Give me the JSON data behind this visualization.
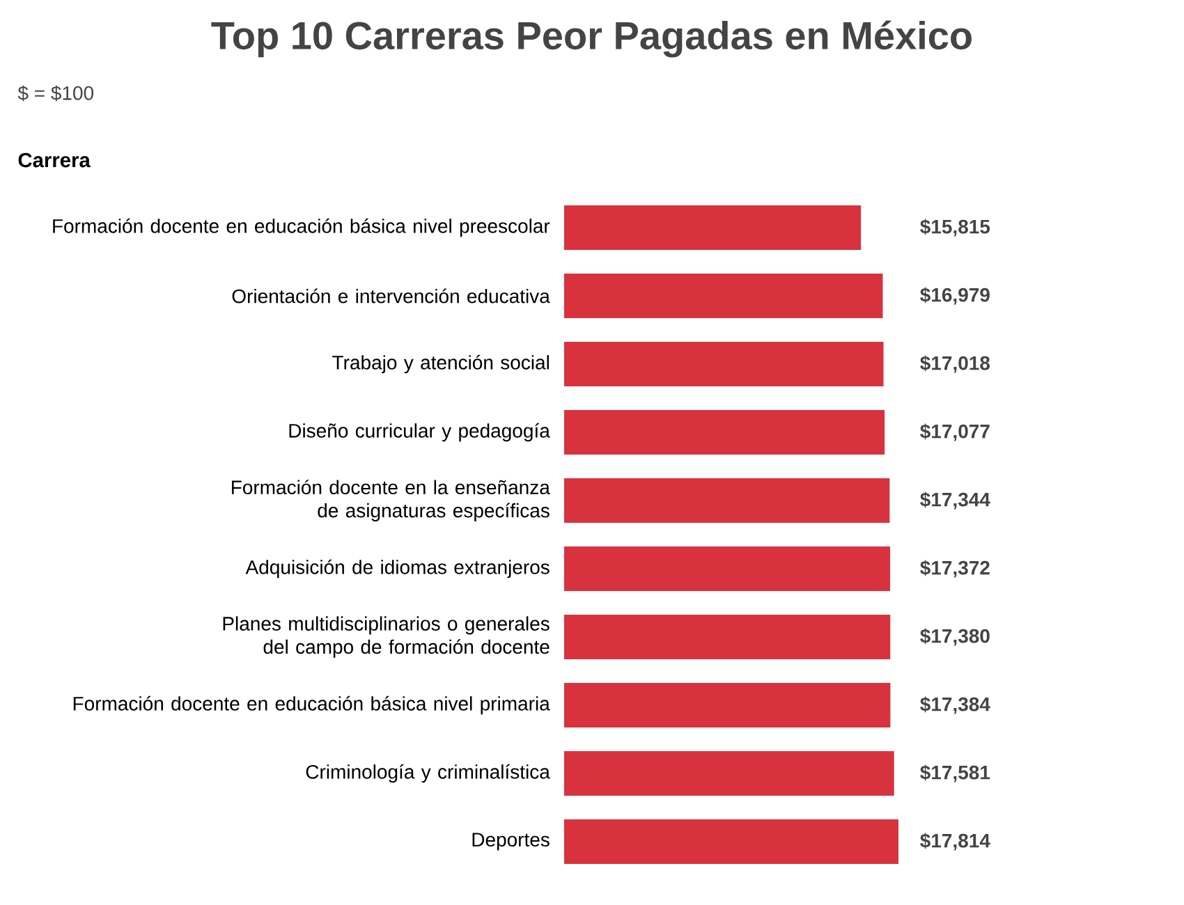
{
  "chart_data": {
    "type": "bar",
    "orientation": "horizontal",
    "title": "Top 10 Carreras Peor Pagadas en México",
    "annotations": [
      "$ = $100",
      "Carrera"
    ],
    "categories": [
      "Formación docente en educación básica nivel preescolar",
      "Orientación e intervención educativa",
      "Trabajo y atención social",
      "Diseño curricular y pedagogía",
      "Formación docente en la enseñanza de asignaturas específicas",
      "Adquisición de idiomas extranjeros",
      "Planes multidisciplinarios o generales del campo de formación docente",
      "Formación docente en educación básica nivel primaria",
      "Criminología y criminalística",
      "Deportes"
    ],
    "values": [
      15815,
      16979,
      17018,
      17077,
      17344,
      17372,
      17380,
      17384,
      17581,
      17814
    ],
    "value_labels": [
      "$15,815",
      "$16,979",
      "$17,018",
      "$17,077",
      "$17,344",
      "$17,372",
      "$17,380",
      "$17,384",
      "$17,581",
      "$17,814"
    ],
    "color": "#d9323f"
  }
}
